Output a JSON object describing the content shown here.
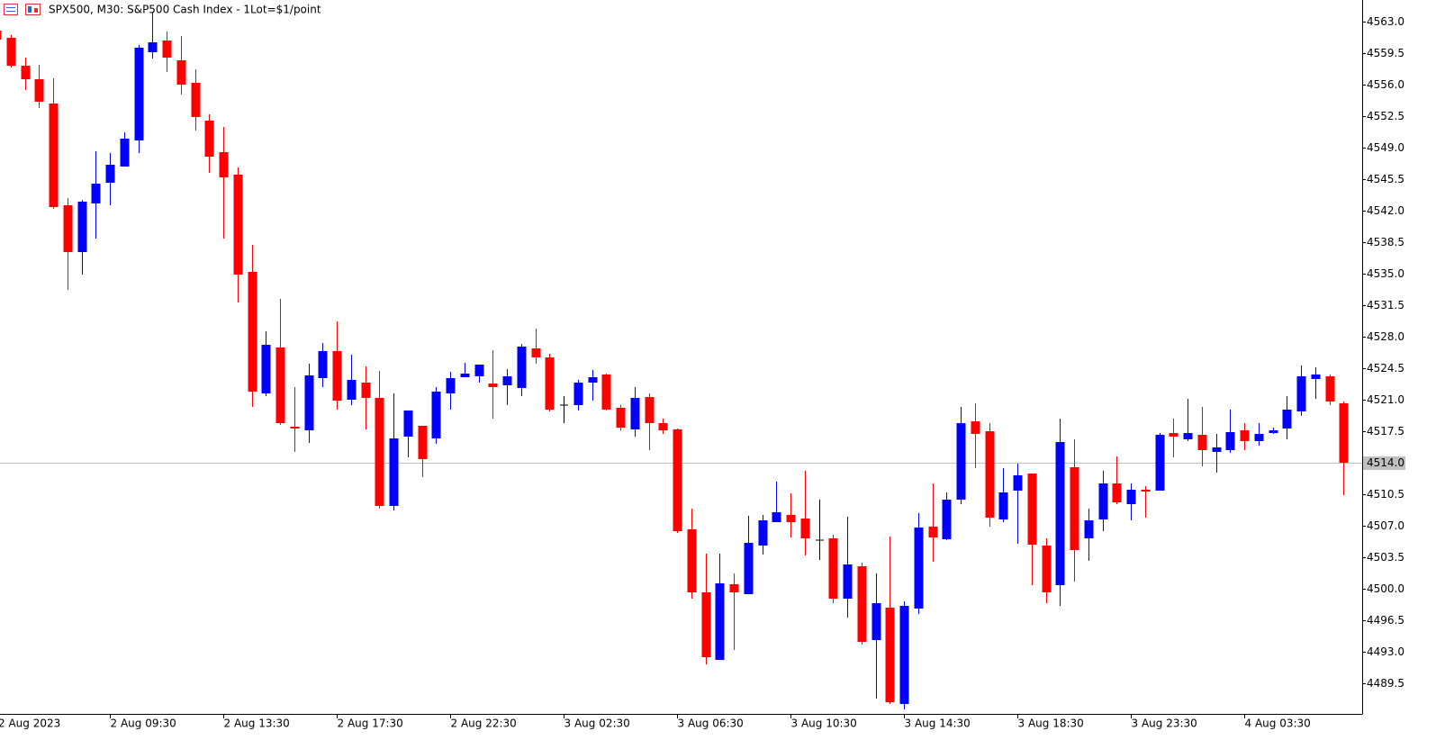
{
  "chart_data": {
    "type": "candlestick",
    "title": "SPX500, M30:  S&P500 Cash Index - 1Lot=$1/point",
    "categories": [
      "2 Aug 2023",
      null,
      null,
      null,
      null,
      null,
      null,
      null,
      "2 Aug 09:30",
      null,
      null,
      null,
      null,
      null,
      null,
      null,
      "2 Aug 13:30",
      null,
      null,
      null,
      null,
      null,
      null,
      null,
      "2 Aug 17:30",
      null,
      null,
      null,
      null,
      null,
      null,
      null,
      "2 Aug 22:30",
      null,
      null,
      null,
      null,
      null,
      null,
      null,
      "3 Aug 02:30",
      null,
      null,
      null,
      null,
      null,
      null,
      null,
      "3 Aug 06:30",
      null,
      null,
      null,
      null,
      null,
      null,
      null,
      "3 Aug 10:30",
      null,
      null,
      null,
      null,
      null,
      null,
      null,
      "3 Aug 14:30",
      null,
      null,
      null,
      null,
      null,
      null,
      null,
      "3 Aug 18:30",
      null,
      null,
      null,
      null,
      null,
      null,
      null,
      "3 Aug 23:30",
      null,
      null,
      null,
      null,
      null,
      null,
      null,
      "4 Aug 03:30",
      null,
      null,
      null,
      null,
      null,
      null,
      null
    ],
    "open": [
      4562.0,
      4561.2,
      4558.1,
      4556.6,
      4553.9,
      4542.6,
      4537.4,
      4542.8,
      4545.1,
      4546.9,
      4549.8,
      4559.6,
      4560.9,
      4558.7,
      4556.2,
      4552.0,
      4548.5,
      4546.0,
      4535.2,
      4521.7,
      4526.8,
      4518.0,
      4517.6,
      4523.4,
      4526.4,
      4521.0,
      4522.9,
      4521.2,
      4509.2,
      4516.9,
      4518.1,
      4516.7,
      4521.7,
      4523.5,
      4523.6,
      4522.8,
      4522.6,
      4522.3,
      4526.7,
      4525.7,
      4520.4,
      4520.4,
      4522.9,
      4523.8,
      4520.1,
      4517.7,
      4521.3,
      4518.4,
      4517.7,
      4506.6,
      4499.6,
      4492.1,
      4500.5,
      4499.4,
      4504.8,
      4507.4,
      4508.2,
      4507.8,
      4505.4,
      4505.6,
      4498.9,
      4502.5,
      4494.3,
      4497.9,
      4487.2,
      4497.8,
      4506.9,
      4505.5,
      4509.9,
      4518.6,
      4517.5,
      4507.7,
      4510.9,
      4512.8,
      4504.8,
      4500.4,
      4513.5,
      4505.6,
      4507.7,
      4511.7,
      4509.4,
      4511.0,
      4510.9,
      4517.3,
      4516.6,
      4517.1,
      4515.2,
      4515.4,
      4517.6,
      4516.4,
      4517.3,
      4517.8,
      4519.7,
      4523.3,
      4523.6,
      4520.6
    ],
    "high": [
      4562.2,
      4561.5,
      4559.0,
      4558.2,
      4556.7,
      4543.4,
      4543.2,
      4548.6,
      4548.4,
      4550.7,
      4560.4,
      4564.0,
      4561.9,
      4561.4,
      4557.7,
      4552.7,
      4551.3,
      4546.8,
      4538.2,
      4528.6,
      4532.2,
      4522.4,
      4525.0,
      4527.3,
      4529.7,
      4526.0,
      4524.7,
      4524.2,
      4521.7,
      4519.8,
      4518.1,
      4522.4,
      4524.1,
      4525.1,
      4524.9,
      4526.5,
      4524.4,
      4527.2,
      4528.9,
      4526.1,
      4521.4,
      4523.2,
      4524.3,
      4523.9,
      4520.4,
      4522.4,
      4521.7,
      4518.9,
      4517.8,
      4508.9,
      4503.9,
      4503.9,
      4501.7,
      4508.1,
      4508.2,
      4511.9,
      4510.6,
      4513.1,
      4509.9,
      4506.0,
      4508.0,
      4502.9,
      4501.7,
      4505.8,
      4498.6,
      4508.4,
      4511.7,
      4510.7,
      4520.2,
      4520.6,
      4518.4,
      4513.4,
      4513.9,
      4512.8,
      4505.6,
      4518.9,
      4516.6,
      4508.9,
      4513.1,
      4514.7,
      4511.7,
      4511.4,
      4517.3,
      4518.9,
      4521.1,
      4520.2,
      4517.2,
      4519.9,
      4518.4,
      4518.4,
      4517.9,
      4521.4,
      4524.8,
      4524.6,
      4523.8,
      4520.8
    ],
    "low": [
      4560.8,
      4557.9,
      4555.4,
      4553.4,
      4542.2,
      4533.2,
      4534.9,
      4538.9,
      4542.6,
      4546.9,
      4548.4,
      4558.9,
      4557.4,
      4554.9,
      4550.9,
      4546.2,
      4538.9,
      4531.8,
      4520.2,
      4521.4,
      4518.2,
      4515.2,
      4516.2,
      4522.4,
      4519.9,
      4520.4,
      4517.7,
      4508.9,
      4508.7,
      4514.6,
      4512.4,
      4516.1,
      4519.9,
      4523.5,
      4522.9,
      4518.9,
      4520.4,
      4521.4,
      4525.0,
      4519.7,
      4518.4,
      4519.8,
      4520.9,
      4519.8,
      4517.6,
      4516.9,
      4515.4,
      4517.2,
      4506.2,
      4498.9,
      4491.6,
      4492.1,
      4493.2,
      4499.4,
      4503.8,
      4507.4,
      4505.7,
      4503.7,
      4503.2,
      4498.4,
      4496.8,
      4493.8,
      4487.8,
      4487.2,
      4486.6,
      4497.2,
      4503.0,
      4505.4,
      4509.4,
      4513.4,
      4506.9,
      4507.4,
      4505.0,
      4500.4,
      4498.4,
      4498.1,
      4500.8,
      4503.1,
      4506.4,
      4509.4,
      4507.6,
      4507.9,
      4510.9,
      4514.6,
      4516.4,
      4513.6,
      4512.9,
      4515.1,
      4515.4,
      4515.9,
      4517.2,
      4516.6,
      4519.2,
      4521.1,
      4520.4,
      4510.4
    ],
    "close": [
      4561.0,
      4558.1,
      4556.6,
      4554.1,
      4542.4,
      4537.4,
      4543.0,
      4545.0,
      4547.1,
      4550.0,
      4560.1,
      4560.7,
      4559.0,
      4556.0,
      4552.4,
      4548.0,
      4545.7,
      4534.9,
      4521.9,
      4527.1,
      4518.4,
      4517.8,
      4523.7,
      4526.4,
      4520.9,
      4523.2,
      4521.2,
      4509.2,
      4516.7,
      4519.8,
      4514.4,
      4521.9,
      4523.4,
      4523.9,
      4524.9,
      4522.4,
      4523.6,
      4526.9,
      4525.7,
      4519.9,
      4520.4,
      4522.9,
      4523.5,
      4519.9,
      4517.9,
      4521.2,
      4518.4,
      4517.6,
      4506.4,
      4499.6,
      4492.4,
      4500.6,
      4499.6,
      4505.1,
      4507.6,
      4508.5,
      4507.4,
      4505.6,
      4505.4,
      4498.9,
      4502.7,
      4494.1,
      4498.4,
      4487.4,
      4498.1,
      4506.8,
      4505.7,
      4509.9,
      4518.4,
      4517.2,
      4507.9,
      4510.7,
      4512.6,
      4504.9,
      4499.6,
      4516.3,
      4504.3,
      4507.6,
      4511.7,
      4509.6,
      4511.0,
      4510.8,
      4517.1,
      4516.9,
      4517.3,
      4515.4,
      4515.7,
      4517.4,
      4516.4,
      4517.2,
      4517.6,
      4519.9,
      4523.6,
      4523.8,
      4520.8,
      4514.0
    ],
    "up_color": "#0000ff",
    "down_color": "#ff0000",
    "doji_color": "#000000",
    "ylim": [
      4486.1,
      4565.4
    ],
    "yticks": [
      {
        "value": 4563.0,
        "label": "4563.0"
      },
      {
        "value": 4559.5,
        "label": "4559.5"
      },
      {
        "value": 4556.0,
        "label": "4556.0"
      },
      {
        "value": 4552.5,
        "label": "4552.5"
      },
      {
        "value": 4549.0,
        "label": "4549.0"
      },
      {
        "value": 4545.5,
        "label": "4545.5"
      },
      {
        "value": 4542.0,
        "label": "4542.0"
      },
      {
        "value": 4538.5,
        "label": "4538.5"
      },
      {
        "value": 4535.0,
        "label": "4535.0"
      },
      {
        "value": 4531.5,
        "label": "4531.5"
      },
      {
        "value": 4528.0,
        "label": "4528.0"
      },
      {
        "value": 4524.5,
        "label": "4524.5"
      },
      {
        "value": 4521.0,
        "label": "4521.0"
      },
      {
        "value": 4517.5,
        "label": "4517.5"
      },
      {
        "value": 4514.0,
        "label": "4514.0"
      },
      {
        "value": 4510.5,
        "label": "4510.5"
      },
      {
        "value": 4507.0,
        "label": "4507.0"
      },
      {
        "value": 4503.5,
        "label": "4503.5"
      },
      {
        "value": 4500.0,
        "label": "4500.0"
      },
      {
        "value": 4496.5,
        "label": "4496.5"
      },
      {
        "value": 4493.0,
        "label": "4493.0"
      },
      {
        "value": 4489.5,
        "label": "4489.5"
      }
    ],
    "current_price": {
      "value": 4514.0,
      "label": "4514.0"
    },
    "grid": false
  }
}
